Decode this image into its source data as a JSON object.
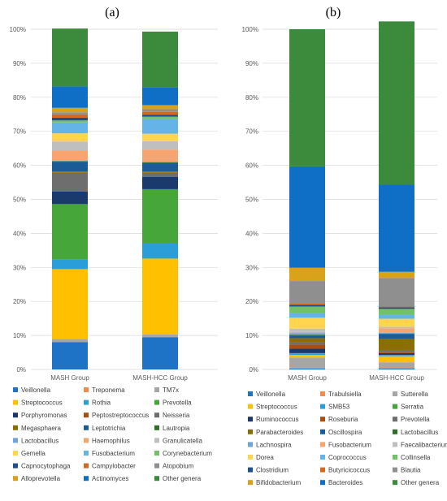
{
  "chart_data": [
    {
      "type": "bar",
      "stacked": true,
      "percent": true,
      "panel_label": "(a)",
      "categories": [
        "MASH Group",
        "MASH-HCC Group"
      ],
      "ylim": [
        0,
        100
      ],
      "yticks": [
        "0%",
        "10%",
        "20%",
        "30%",
        "40%",
        "50%",
        "60%",
        "70%",
        "80%",
        "90%",
        "100%"
      ],
      "grid": true,
      "legend_position": "bottom",
      "series": [
        {
          "name": "Veillonella",
          "color": "#1f73c6",
          "values": [
            8.0,
            9.5
          ]
        },
        {
          "name": "Treponema",
          "color": "#f28b4b",
          "values": [
            0.0,
            0.0
          ]
        },
        {
          "name": "TM7x",
          "color": "#a6a6a6",
          "values": [
            1.0,
            0.8
          ]
        },
        {
          "name": "Streptococcus",
          "color": "#ffc000",
          "values": [
            20.5,
            22.3
          ]
        },
        {
          "name": "Rothia",
          "color": "#2a9ed9",
          "values": [
            2.8,
            4.4
          ]
        },
        {
          "name": "Prevotella",
          "color": "#46a63a",
          "values": [
            16.3,
            16.0
          ]
        },
        {
          "name": "Porphyromonas",
          "color": "#1a3a6e",
          "values": [
            3.7,
            3.6
          ]
        },
        {
          "name": "Peptostreptococcus",
          "color": "#a94d12",
          "values": [
            0.2,
            0.2
          ]
        },
        {
          "name": "Neisseria",
          "color": "#6e6e6e",
          "values": [
            5.3,
            1.0
          ]
        },
        {
          "name": "Megasphaera",
          "color": "#8c6d00",
          "values": [
            0.4,
            0.4
          ]
        },
        {
          "name": "Leptotrichia",
          "color": "#1b5c96",
          "values": [
            2.8,
            2.5
          ]
        },
        {
          "name": "Lautropia",
          "color": "#2f6e26",
          "values": [
            0.2,
            0.2
          ]
        },
        {
          "name": "Lactobacillus",
          "color": "#6fa3d9",
          "values": [
            0.2,
            0.2
          ]
        },
        {
          "name": "Haemophilus",
          "color": "#f7a46e",
          "values": [
            3.0,
            3.5
          ]
        },
        {
          "name": "Granulicatella",
          "color": "#bfbfbf",
          "values": [
            2.6,
            2.5
          ]
        },
        {
          "name": "Gemella",
          "color": "#ffd54f",
          "values": [
            2.4,
            2.2
          ]
        },
        {
          "name": "Fusobacterium",
          "color": "#65b4e8",
          "values": [
            3.2,
            4.3
          ]
        },
        {
          "name": "Corynebacterium",
          "color": "#72c167",
          "values": [
            0.6,
            0.7
          ]
        },
        {
          "name": "Capnocytophaga",
          "color": "#1c4f8c",
          "values": [
            0.8,
            0.6
          ]
        },
        {
          "name": "Campylobacter",
          "color": "#d2691e",
          "values": [
            1.0,
            0.8
          ]
        },
        {
          "name": "Atopobium",
          "color": "#8f8f8f",
          "values": [
            0.6,
            0.8
          ]
        },
        {
          "name": "Alloprevotella",
          "color": "#d9a21b",
          "values": [
            1.3,
            1.2
          ]
        },
        {
          "name": "Actinomyces",
          "color": "#0f6fc6",
          "values": [
            6.3,
            5.2
          ]
        },
        {
          "name": "Other genera",
          "color": "#3c8a3c",
          "values": [
            17.0,
            16.4
          ]
        }
      ]
    },
    {
      "type": "bar",
      "stacked": true,
      "percent": true,
      "panel_label": "(b)",
      "categories": [
        "MASH Group",
        "MASH-HCC Group"
      ],
      "ylim": [
        0,
        100
      ],
      "yticks": [
        "0%",
        "10%",
        "20%",
        "30%",
        "40%",
        "50%",
        "60%",
        "70%",
        "80%",
        "90%",
        "100%"
      ],
      "grid": true,
      "legend_position": "bottom",
      "series": [
        {
          "name": "Veillonella",
          "color": "#1f73c6",
          "values": [
            0.3,
            0.3
          ]
        },
        {
          "name": "Trabulsiella",
          "color": "#f28b4b",
          "values": [
            0.2,
            0.3
          ]
        },
        {
          "name": "Sutterella",
          "color": "#a6a6a6",
          "values": [
            3.0,
            1.5
          ]
        },
        {
          "name": "Streptococcus",
          "color": "#ffc000",
          "values": [
            0.8,
            1.8
          ]
        },
        {
          "name": "SMB53",
          "color": "#2a9ed9",
          "values": [
            0.3,
            0.2
          ]
        },
        {
          "name": "Serratia",
          "color": "#46a63a",
          "values": [
            0.2,
            0.2
          ]
        },
        {
          "name": "Ruminococcus",
          "color": "#1a3a6e",
          "values": [
            1.3,
            0.5
          ]
        },
        {
          "name": "Roseburia",
          "color": "#a94d12",
          "values": [
            1.2,
            0.4
          ]
        },
        {
          "name": "Prevotella",
          "color": "#6e6e6e",
          "values": [
            0.6,
            0.4
          ]
        },
        {
          "name": "Parabacteroides",
          "color": "#8c6d00",
          "values": [
            1.3,
            3.3
          ]
        },
        {
          "name": "Oscillospira",
          "color": "#1b5c96",
          "values": [
            0.8,
            1.4
          ]
        },
        {
          "name": "Lactobacillus",
          "color": "#2f6e26",
          "values": [
            0.2,
            0.2
          ]
        },
        {
          "name": "Lachnospira",
          "color": "#6fa3d9",
          "values": [
            0.5,
            0.3
          ]
        },
        {
          "name": "Fusobacterium",
          "color": "#f7a46e",
          "values": [
            0.3,
            1.3
          ]
        },
        {
          "name": "Faecalibacterium",
          "color": "#bfbfbf",
          "values": [
            1.0,
            0.4
          ]
        },
        {
          "name": "Dorea",
          "color": "#ffd54f",
          "values": [
            3.2,
            2.4
          ]
        },
        {
          "name": "Coprococcus",
          "color": "#65b4e8",
          "values": [
            1.5,
            1.2
          ]
        },
        {
          "name": "Collinsella",
          "color": "#72c167",
          "values": [
            1.8,
            1.7
          ]
        },
        {
          "name": "Clostridium",
          "color": "#1c4f8c",
          "values": [
            0.5,
            0.5
          ]
        },
        {
          "name": "Butyricicoccus",
          "color": "#d2691e",
          "values": [
            0.5,
            0.3
          ]
        },
        {
          "name": "Blautia",
          "color": "#8f8f8f",
          "values": [
            6.5,
            8.3
          ]
        },
        {
          "name": "Bifidobacterium",
          "color": "#d9a21b",
          "values": [
            3.9,
            1.8
          ]
        },
        {
          "name": "Bacteroides",
          "color": "#0f6fc6",
          "values": [
            29.8,
            25.6
          ]
        },
        {
          "name": "Other genera",
          "color": "#3c8a3c",
          "values": [
            40.3,
            48.0
          ]
        }
      ]
    }
  ]
}
